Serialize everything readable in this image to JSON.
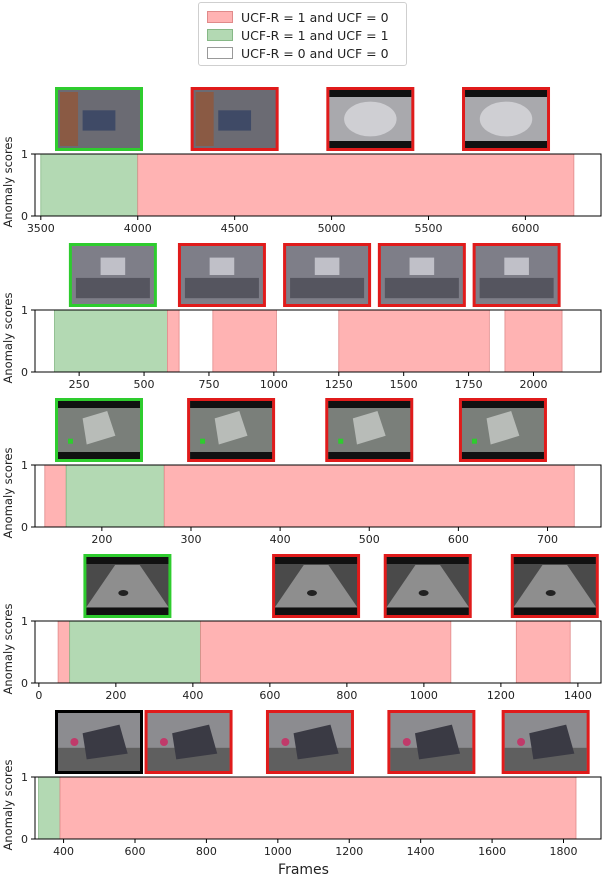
{
  "legend": [
    {
      "label": "UCF-R = 1 and UCF = 0",
      "color": "#ffb3b3",
      "edge": "#e08a8a"
    },
    {
      "label": "UCF-R = 1 and UCF = 1",
      "color": "#b3d9b3",
      "edge": "#86b886"
    },
    {
      "label": "UCF-R = 0 and UCF = 0",
      "color": "#ffffff",
      "edge": "#999999"
    }
  ],
  "xlabel": "Frames",
  "frame_border_colors": {
    "green": "#2ecc2e",
    "red": "#e01b1b",
    "none": "#000000"
  },
  "chart_data": [
    {
      "type": "area",
      "ylabel": "Anomaly scores",
      "xlim": [
        3470,
        6390
      ],
      "ylim": [
        0,
        1
      ],
      "xticks": [
        3500,
        4000,
        4500,
        5000,
        5500,
        6000
      ],
      "yticks": [
        0,
        1
      ],
      "spans": [
        {
          "start": 3500,
          "end": 4000,
          "class": "green"
        },
        {
          "start": 4000,
          "end": 6250,
          "class": "red"
        }
      ],
      "thumbnails": [
        {
          "frame": 3750,
          "border": "green",
          "scene": "indoor-room"
        },
        {
          "frame": 4500,
          "border": "red",
          "scene": "indoor-room"
        },
        {
          "frame": 5200,
          "border": "red",
          "scene": "smoke"
        },
        {
          "frame": 5900,
          "border": "red",
          "scene": "smoke"
        }
      ]
    },
    {
      "type": "area",
      "ylabel": "Anomaly scores",
      "xlim": [
        80,
        2260
      ],
      "ylim": [
        0,
        1
      ],
      "xticks": [
        250,
        500,
        750,
        1000,
        1250,
        1500,
        1750,
        2000
      ],
      "yticks": [
        0,
        1
      ],
      "spans": [
        {
          "start": 155,
          "end": 590,
          "class": "green"
        },
        {
          "start": 590,
          "end": 635,
          "class": "red"
        },
        {
          "start": 765,
          "end": 1010,
          "class": "red"
        },
        {
          "start": 1250,
          "end": 1830,
          "class": "red"
        },
        {
          "start": 1890,
          "end": 2110,
          "class": "red"
        }
      ],
      "thumbnails": [
        {
          "frame": 380,
          "border": "green",
          "scene": "office"
        },
        {
          "frame": 800,
          "border": "red",
          "scene": "office"
        },
        {
          "frame": 1205,
          "border": "red",
          "scene": "office"
        },
        {
          "frame": 1570,
          "border": "red",
          "scene": "office"
        },
        {
          "frame": 1935,
          "border": "red",
          "scene": "office"
        }
      ]
    },
    {
      "type": "area",
      "ylabel": "Anomaly scores",
      "xlim": [
        125,
        760
      ],
      "ylim": [
        0,
        1
      ],
      "xticks": [
        200,
        300,
        400,
        500,
        600,
        700
      ],
      "yticks": [
        0,
        1
      ],
      "spans": [
        {
          "start": 136,
          "end": 160,
          "class": "red"
        },
        {
          "start": 160,
          "end": 270,
          "class": "green"
        },
        {
          "start": 270,
          "end": 730,
          "class": "red"
        }
      ],
      "thumbnails": [
        {
          "frame": 190,
          "border": "green",
          "scene": "explosion"
        },
        {
          "frame": 345,
          "border": "red",
          "scene": "explosion"
        },
        {
          "frame": 500,
          "border": "red",
          "scene": "explosion"
        },
        {
          "frame": 650,
          "border": "red",
          "scene": "explosion"
        }
      ]
    },
    {
      "type": "area",
      "ylabel": "Anomaly scores",
      "xlim": [
        -10,
        1460
      ],
      "ylim": [
        0,
        1
      ],
      "xticks": [
        0,
        200,
        400,
        600,
        800,
        1000,
        1200,
        1400
      ],
      "yticks": [
        0,
        1
      ],
      "spans": [
        {
          "start": 50,
          "end": 80,
          "class": "red"
        },
        {
          "start": 80,
          "end": 420,
          "class": "green"
        },
        {
          "start": 420,
          "end": 1070,
          "class": "red"
        },
        {
          "start": 1240,
          "end": 1380,
          "class": "red"
        }
      ],
      "thumbnails": [
        {
          "frame": 230,
          "border": "green",
          "scene": "corridor"
        },
        {
          "frame": 720,
          "border": "red",
          "scene": "corridor"
        },
        {
          "frame": 1010,
          "border": "red",
          "scene": "corridor"
        },
        {
          "frame": 1340,
          "border": "red",
          "scene": "corridor"
        }
      ]
    },
    {
      "type": "area",
      "ylabel": "Anomaly scores",
      "xlim": [
        320,
        1905
      ],
      "ylim": [
        0,
        1
      ],
      "xticks": [
        400,
        600,
        800,
        1000,
        1200,
        1400,
        1600,
        1800
      ],
      "yticks": [
        0,
        1
      ],
      "spans": [
        {
          "start": 330,
          "end": 390,
          "class": "green"
        },
        {
          "start": 390,
          "end": 1835,
          "class": "red"
        }
      ],
      "thumbnails": [
        {
          "frame": 410,
          "border": "none",
          "scene": "street"
        },
        {
          "frame": 750,
          "border": "red",
          "scene": "street"
        },
        {
          "frame": 1090,
          "border": "red",
          "scene": "street"
        },
        {
          "frame": 1430,
          "border": "red",
          "scene": "street"
        },
        {
          "frame": 1750,
          "border": "red",
          "scene": "street"
        }
      ]
    }
  ]
}
